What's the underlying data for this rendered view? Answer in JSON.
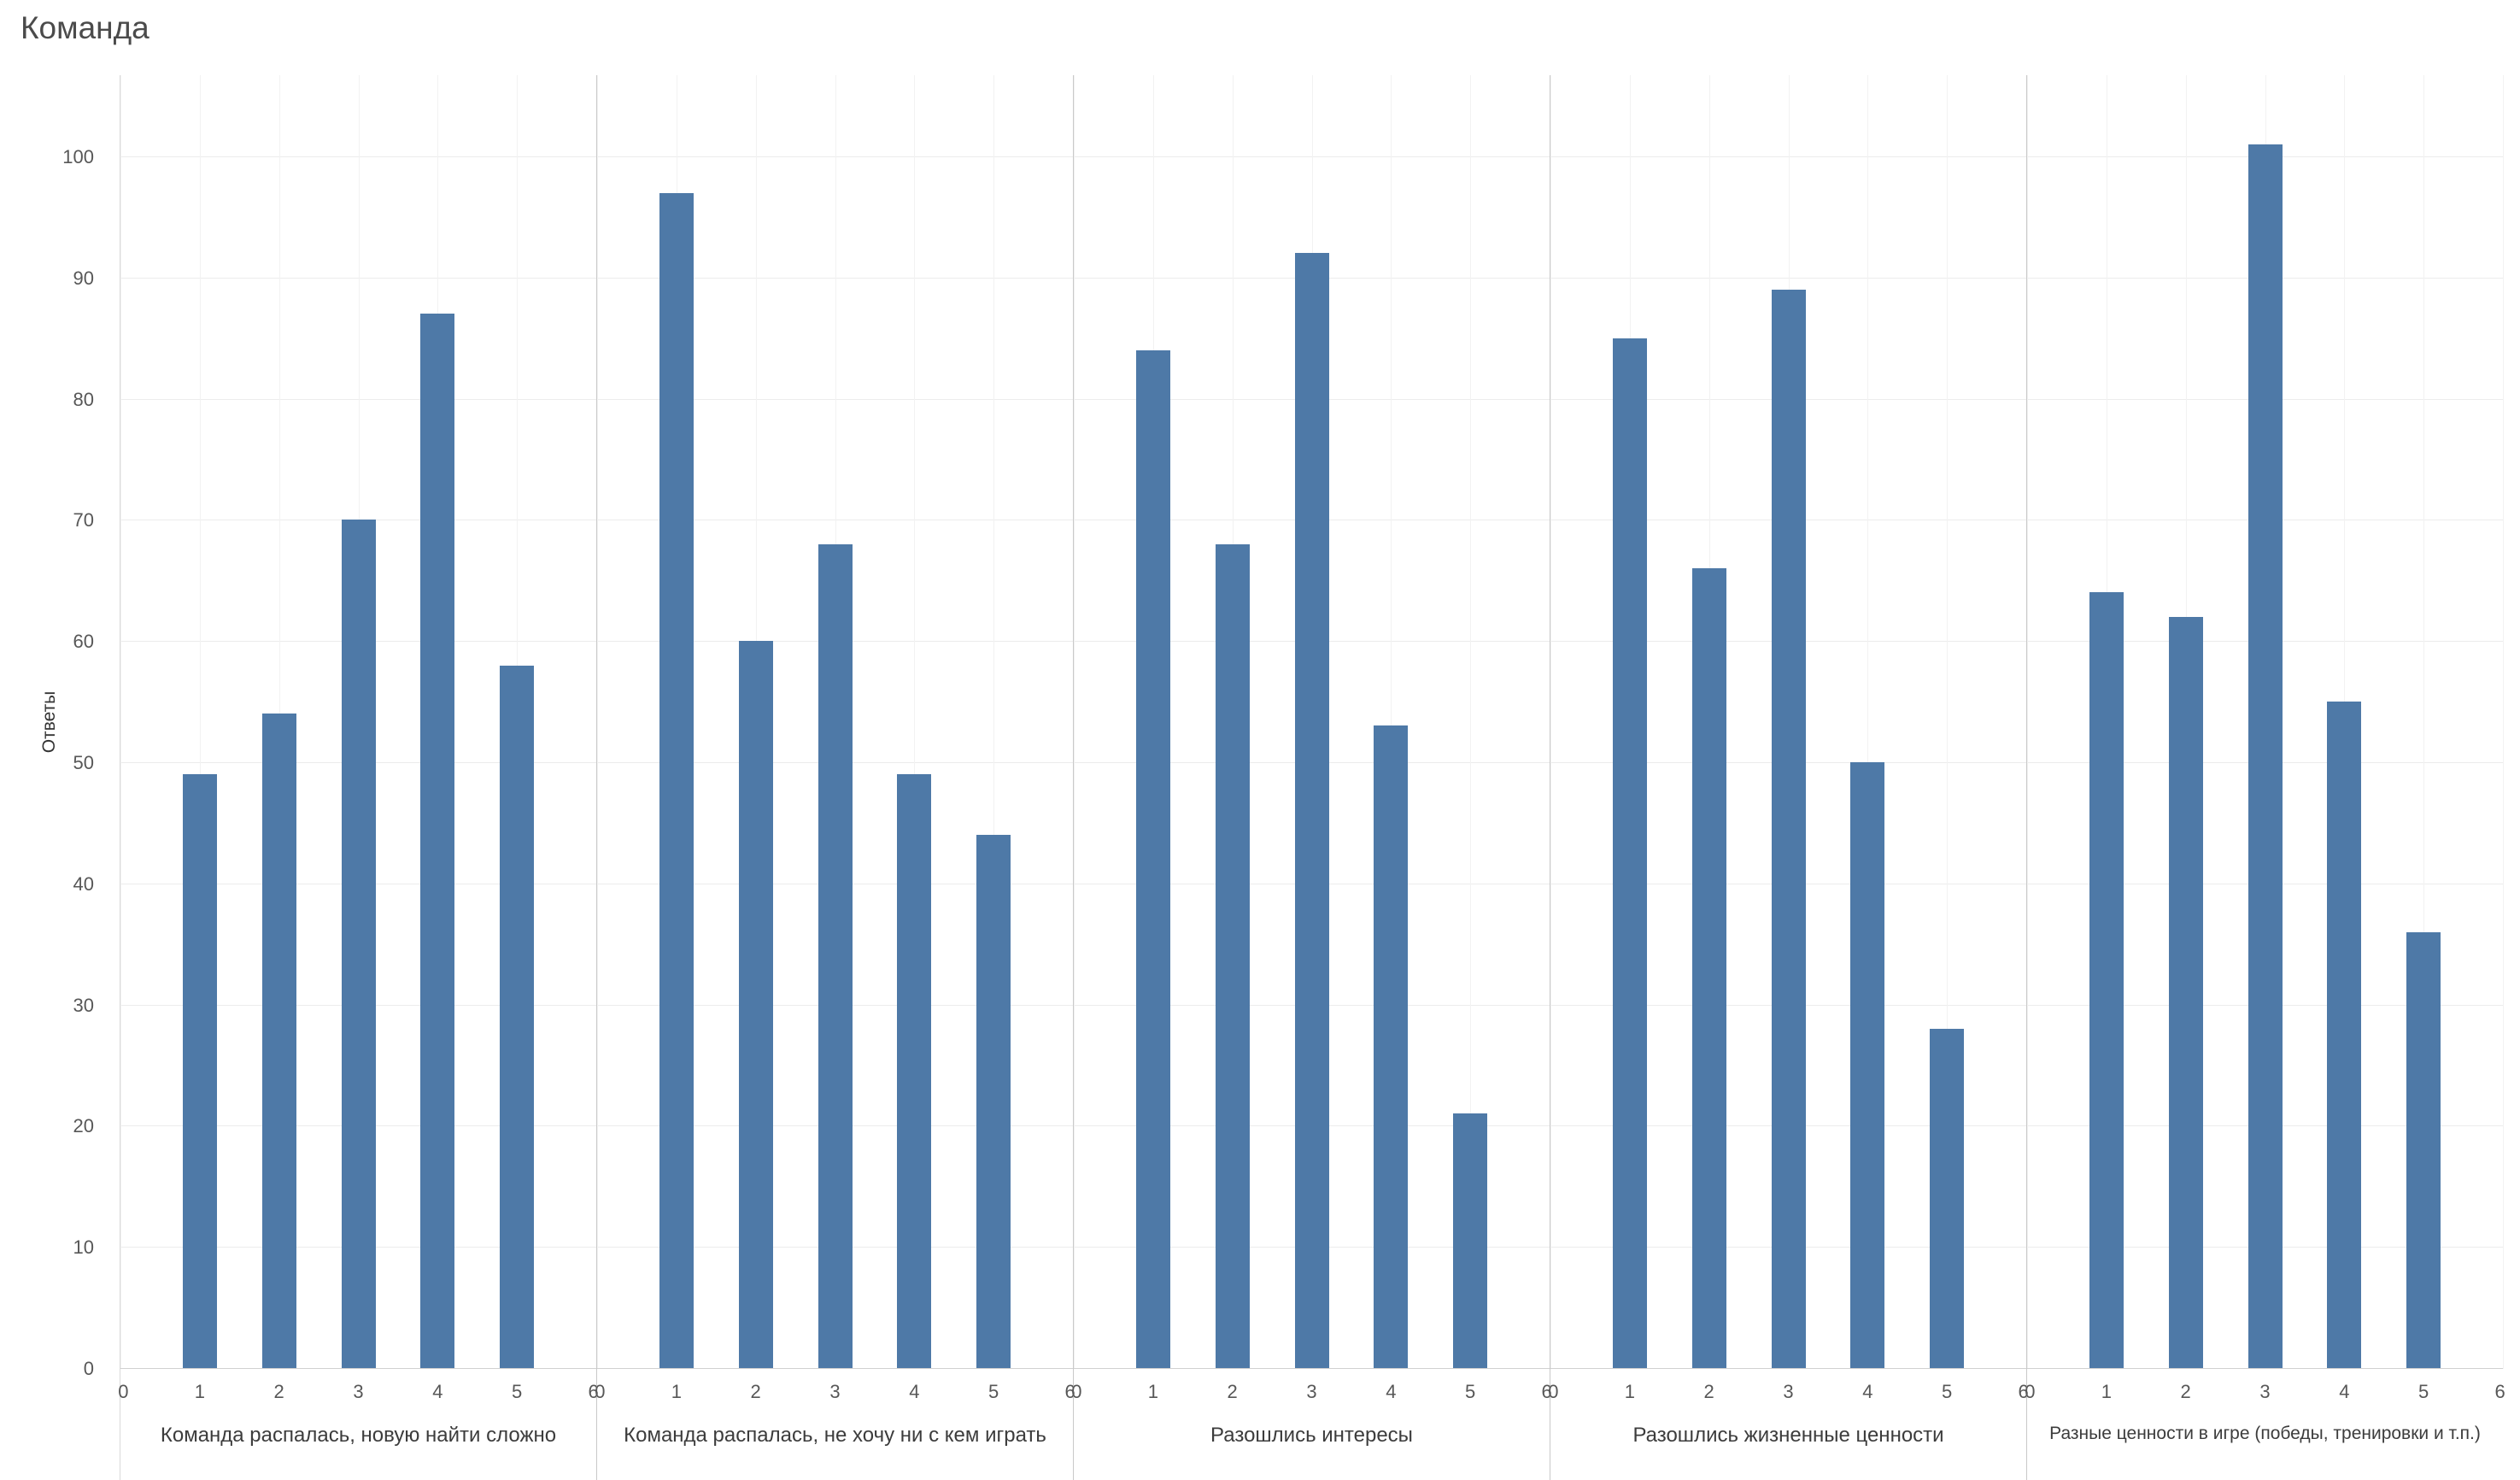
{
  "chart_data": {
    "type": "bar",
    "title": "Команда",
    "ylabel": "Ответы",
    "xlabel": "",
    "ylim": [
      0,
      107
    ],
    "yticks": [
      0,
      10,
      20,
      30,
      40,
      50,
      60,
      70,
      80,
      90,
      100
    ],
    "xticks": [
      0,
      1,
      2,
      3,
      4,
      5,
      6
    ],
    "x": [
      1,
      2,
      3,
      4,
      5
    ],
    "bar_color": "#4e79a7",
    "grid": true,
    "legend": "none",
    "panels": [
      {
        "label": "Команда распалась, новую найти сложно",
        "values": [
          49,
          54,
          70,
          87,
          58
        ]
      },
      {
        "label": "Команда распалась, не хочу ни с кем играть",
        "values": [
          97,
          60,
          68,
          49,
          44
        ]
      },
      {
        "label": "Разошлись интересы",
        "values": [
          84,
          68,
          92,
          53,
          21
        ]
      },
      {
        "label": "Разошлись жизненные ценности",
        "values": [
          85,
          66,
          89,
          50,
          28
        ]
      },
      {
        "label": "Разные ценности в игре (победы, тренировки и т.п.)",
        "values": [
          64,
          62,
          101,
          55,
          36
        ]
      }
    ]
  }
}
